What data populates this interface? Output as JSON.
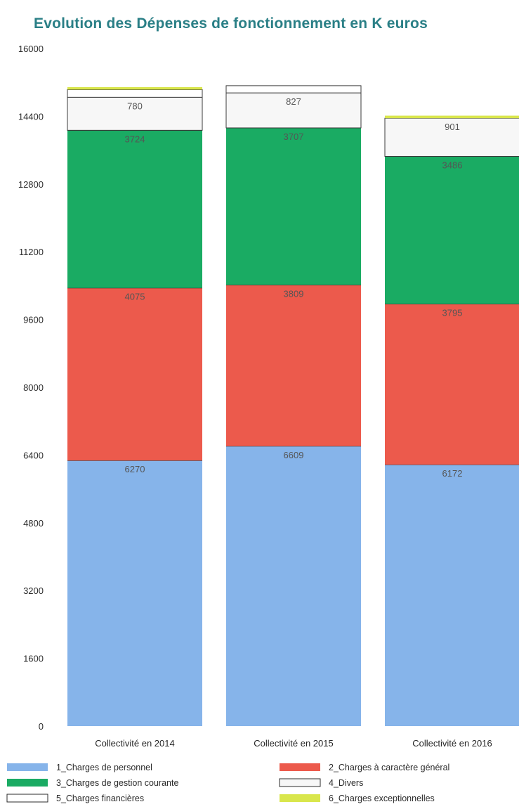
{
  "chart_data": {
    "type": "bar",
    "stacked": true,
    "title": "Evolution des Dépenses de fonctionnement en K euros",
    "xlabel": "",
    "ylabel": "",
    "ylim": [
      0,
      16000
    ],
    "yticks": [
      {
        "value": 0,
        "label": "0"
      },
      {
        "value": 1600,
        "label": "1600"
      },
      {
        "value": 3200,
        "label": "3200"
      },
      {
        "value": 4800,
        "label": "4800"
      },
      {
        "value": 6400,
        "label": "6400"
      },
      {
        "value": 8000,
        "label": "8000"
      },
      {
        "value": 9600,
        "label": "9600"
      },
      {
        "value": 11200,
        "label": "11200"
      },
      {
        "value": 12800,
        "label": "12800"
      },
      {
        "value": 14400,
        "label": "14400"
      },
      {
        "value": 16000,
        "label": "16000"
      }
    ],
    "grid": false,
    "legend_position": "bottom",
    "categories": [
      "Collectivité en 2014",
      "Collectivité en 2015",
      "Collectivité en 2016"
    ],
    "series": [
      {
        "name": "1_Charges de personnel",
        "color": "#86b4ea",
        "values": [
          6270,
          6609,
          6172
        ],
        "labels": [
          "6270",
          "6609",
          "6172"
        ]
      },
      {
        "name": "2_Charges à caractère général",
        "color": "#ec5a4c",
        "values": [
          4075,
          3809,
          3795
        ],
        "labels": [
          "4075",
          "3809",
          "3795"
        ]
      },
      {
        "name": "3_Charges de gestion courante",
        "color": "#1aab63",
        "values": [
          3724,
          3707,
          3486
        ],
        "labels": [
          "3724",
          "3707",
          "3486"
        ]
      },
      {
        "name": "4_Divers",
        "color": "#f7f7f7",
        "values": [
          780,
          827,
          901
        ],
        "labels": [
          "780",
          "827",
          "901"
        ]
      },
      {
        "name": "5_Charges financières",
        "color": "#ffffff",
        "values": [
          180,
          170,
          0
        ],
        "labels": [
          "",
          "",
          ""
        ]
      },
      {
        "name": "6_Charges exceptionnelles",
        "color": "#d9e64c",
        "values": [
          60,
          0,
          60
        ],
        "labels": [
          "",
          "",
          ""
        ]
      }
    ]
  }
}
